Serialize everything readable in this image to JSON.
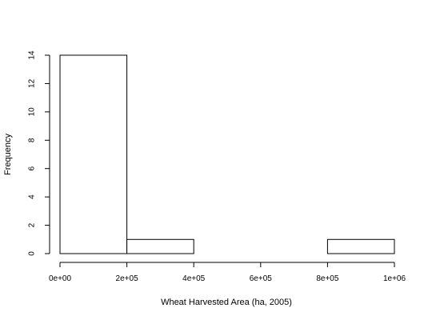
{
  "chart_data": {
    "type": "bar",
    "subtype": "histogram",
    "title": "",
    "xlabel": "Wheat Harvested Area (ha, 2005)",
    "ylabel": "Frequency",
    "bins": [
      {
        "start": 0,
        "end": 200000,
        "count": 14
      },
      {
        "start": 200000,
        "end": 400000,
        "count": 1
      },
      {
        "start": 400000,
        "end": 600000,
        "count": 0
      },
      {
        "start": 600000,
        "end": 800000,
        "count": 0
      },
      {
        "start": 800000,
        "end": 1000000,
        "count": 1
      }
    ],
    "xlim": [
      0,
      1000000
    ],
    "ylim": [
      0,
      14
    ],
    "x_ticks": [
      {
        "value": 0,
        "label": "0e+00"
      },
      {
        "value": 200000,
        "label": "2e+05"
      },
      {
        "value": 400000,
        "label": "4e+05"
      },
      {
        "value": 600000,
        "label": "6e+05"
      },
      {
        "value": 800000,
        "label": "8e+05"
      },
      {
        "value": 1000000,
        "label": "1e+06"
      }
    ],
    "y_ticks": [
      {
        "value": 0,
        "label": "0"
      },
      {
        "value": 2,
        "label": "2"
      },
      {
        "value": 4,
        "label": "4"
      },
      {
        "value": 6,
        "label": "6"
      },
      {
        "value": 8,
        "label": "8"
      },
      {
        "value": 10,
        "label": "10"
      },
      {
        "value": 12,
        "label": "12"
      },
      {
        "value": 14,
        "label": "14"
      }
    ],
    "grid": false,
    "colors": {
      "bar_fill": "#ffffff",
      "bar_stroke": "#000000"
    }
  }
}
